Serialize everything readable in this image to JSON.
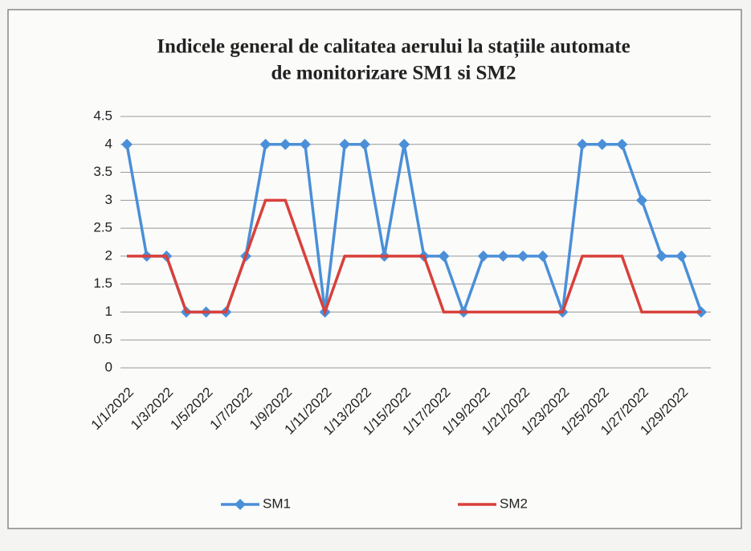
{
  "chart_data": {
    "type": "line",
    "title": [
      "Indicele general de calitatea aerului la stațiile automate",
      "de monitorizare SM1 si SM2"
    ],
    "categories": [
      "1/1/2022",
      null,
      "1/3/2022",
      null,
      "1/5/2022",
      null,
      "1/7/2022",
      null,
      "1/9/2022",
      null,
      "1/11/2022",
      null,
      "1/13/2022",
      null,
      "1/15/2022",
      null,
      "1/17/2022",
      null,
      "1/19/2022",
      null,
      "1/21/2022",
      null,
      "1/23/2022",
      null,
      "1/25/2022",
      null,
      "1/27/2022",
      null,
      "1/29/2022",
      null
    ],
    "series": [
      {
        "name": "SM1",
        "color": "#4a8fd8",
        "marker": "diamond",
        "values": [
          4,
          2,
          2,
          1,
          1,
          1,
          2,
          4,
          4,
          4,
          1,
          4,
          4,
          2,
          4,
          2,
          2,
          1,
          2,
          2,
          2,
          2,
          1,
          4,
          4,
          4,
          3,
          2,
          2,
          1
        ]
      },
      {
        "name": "SM2",
        "color": "#d9403a",
        "values": [
          2,
          2,
          2,
          1,
          1,
          1,
          2,
          3,
          3,
          2,
          1,
          2,
          2,
          2,
          2,
          2,
          1,
          1,
          1,
          1,
          1,
          1,
          1,
          2,
          2,
          2,
          1,
          1,
          1,
          1
        ]
      }
    ],
    "ylim": [
      0,
      4.5
    ],
    "yticks": [
      0,
      0.5,
      1,
      1.5,
      2,
      2.5,
      3,
      3.5,
      4,
      4.5
    ],
    "grid": true,
    "legend": "bottom"
  }
}
